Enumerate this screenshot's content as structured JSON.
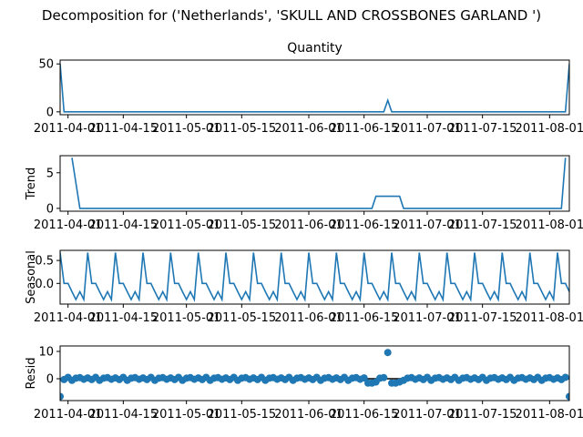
{
  "figure_title": "Decomposition for ('Netherlands', 'SKULL AND CROSSBONES  GARLAND ')",
  "colors": {
    "series": "#1f77b4",
    "zero_line": "#000000"
  },
  "chart_data": [
    {
      "type": "line",
      "title": "Quantity",
      "ylabel": "",
      "ylim": [
        -3,
        54
      ],
      "yticks": [
        0,
        50
      ],
      "x_start": "2011-03-30",
      "x_end": "2011-08-06",
      "xlim": [
        "2011-03-30",
        "2011-08-06"
      ],
      "xticks": [
        "2011-04-01",
        "2011-04-15",
        "2011-05-01",
        "2011-05-15",
        "2011-06-01",
        "2011-06-15",
        "2011-07-01",
        "2011-07-15",
        "2011-08-01"
      ],
      "series": [
        {
          "points": [
            [
              "2011-03-30",
              50
            ],
            [
              "2011-03-31",
              0
            ],
            [
              "2011-06-20",
              0
            ],
            [
              "2011-06-21",
              12
            ],
            [
              "2011-06-22",
              0
            ],
            [
              "2011-08-05",
              0
            ],
            [
              "2011-08-06",
              50
            ]
          ]
        }
      ]
    },
    {
      "type": "line",
      "title": "",
      "ylabel": "Trend",
      "ylim": [
        -0.4,
        7.4
      ],
      "yticks": [
        0,
        5
      ],
      "xlim": [
        "2011-03-30",
        "2011-08-06"
      ],
      "xticks": [
        "2011-04-01",
        "2011-04-15",
        "2011-05-01",
        "2011-05-15",
        "2011-06-01",
        "2011-06-15",
        "2011-07-01",
        "2011-07-15",
        "2011-08-01"
      ],
      "series": [
        {
          "points": [
            [
              "2011-04-02",
              7.1
            ],
            [
              "2011-04-04",
              0
            ],
            [
              "2011-06-17",
              0
            ],
            [
              "2011-06-18",
              1.7
            ],
            [
              "2011-06-24",
              1.7
            ],
            [
              "2011-06-25",
              0
            ],
            [
              "2011-08-04",
              0
            ],
            [
              "2011-08-05",
              7.1
            ]
          ]
        }
      ]
    },
    {
      "type": "line",
      "title": "",
      "ylabel": "Seasonal",
      "ylim": [
        -0.45,
        0.72
      ],
      "yticks": [
        -0.0,
        0.5
      ],
      "ytick_labels": [
        "0.0",
        "0.5"
      ],
      "xlim": [
        "2011-03-30",
        "2011-08-06"
      ],
      "xticks": [
        "2011-04-01",
        "2011-04-15",
        "2011-05-01",
        "2011-05-15",
        "2011-06-01",
        "2011-06-15",
        "2011-07-01",
        "2011-07-15",
        "2011-08-01"
      ],
      "period": 7,
      "pattern": [
        0.67,
        0.0,
        0.0,
        -0.18,
        -0.35,
        -0.18,
        -0.35
      ],
      "pattern_start": "2011-03-30",
      "series": [
        {
          "points": []
        }
      ]
    },
    {
      "type": "scatter",
      "title": "",
      "ylabel": "Resid",
      "ylim": [
        -8,
        12
      ],
      "yticks": [
        0,
        10
      ],
      "zero_line": true,
      "xlim": [
        "2011-03-30",
        "2011-08-06"
      ],
      "xticks": [
        "2011-04-01",
        "2011-04-15",
        "2011-05-01",
        "2011-05-15",
        "2011-06-01",
        "2011-06-15",
        "2011-07-01",
        "2011-07-15",
        "2011-08-01"
      ],
      "outliers": [
        [
          "2011-03-30",
          -6.5
        ],
        [
          "2011-06-21",
          9.6
        ],
        [
          "2011-08-06",
          -6.5
        ],
        [
          "2011-06-16",
          -1.6
        ],
        [
          "2011-06-17",
          -1.6
        ],
        [
          "2011-06-18",
          -1.2
        ],
        [
          "2011-06-22",
          -1.6
        ],
        [
          "2011-06-23",
          -1.6
        ],
        [
          "2011-06-24",
          -1.2
        ]
      ],
      "base_pattern": [
        0.3,
        -0.3,
        0.5,
        -0.6,
        0.2,
        0.4,
        -0.2
      ],
      "series": [
        {
          "points": []
        }
      ]
    }
  ]
}
